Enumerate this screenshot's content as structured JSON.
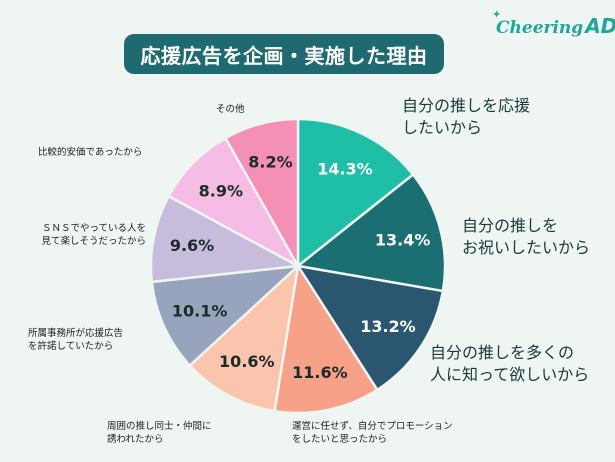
{
  "title": "応援広告を企画・実施した理由",
  "logo": {
    "main": "Cheering",
    "suffix": "AD"
  },
  "chart_data": {
    "type": "pie",
    "title": "応援広告を企画・実施した理由",
    "unit": "%",
    "slices": [
      {
        "label": "自分の推しを応援したいから",
        "value": 14.3,
        "display": "14.3%",
        "color": "#1fbfa7"
      },
      {
        "label": "自分の推しをお祝いしたいから",
        "value": 13.4,
        "display": "13.4%",
        "color": "#1b6f72"
      },
      {
        "label": "自分の推しを多くの人に知って欲しいから",
        "value": 13.2,
        "display": "13.2%",
        "color": "#2b5670"
      },
      {
        "label": "運営に任せず、自分でプロモーションをしたいと思ったから",
        "value": 11.6,
        "display": "11.6%",
        "color": "#f6a188"
      },
      {
        "label": "周囲の推し同士・仲間に誘われたから",
        "value": 10.6,
        "display": "10.6%",
        "color": "#fbc4ad"
      },
      {
        "label": "所属事務所が応援広告を許諾していたから",
        "value": 10.1,
        "display": "10.1%",
        "color": "#98a3bd"
      },
      {
        "label": "ＳＮＳでやっている人を見て楽しそうだったから",
        "value": 9.6,
        "display": "9.6%",
        "color": "#c8bcdc"
      },
      {
        "label": "比較的安価であったから",
        "value": 8.9,
        "display": "8.9%",
        "color": "#f5bde5"
      },
      {
        "label": "その他",
        "value": 8.2,
        "display": "8.2%",
        "color": "#f48fb5"
      }
    ]
  },
  "labels": {
    "s0": [
      "自分の推しを応援",
      "したいから"
    ],
    "s1": [
      "自分の推しを",
      "お祝いしたいから"
    ],
    "s2": [
      "自分の推しを多くの",
      "人に知って欲しいから"
    ],
    "s3": [
      "運営に任せず、自分でプロモーション",
      "をしたいと思ったから"
    ],
    "s4": [
      "周囲の推し同士・仲間に",
      "誘われたから"
    ],
    "s5": [
      "所属事務所が応援広告",
      "を許諾していたから"
    ],
    "s6": [
      "ＳＮＳでやっている人を",
      "見て楽しそうだったから"
    ],
    "s7": [
      "比較的安価であったから"
    ],
    "s8": [
      "その他"
    ]
  }
}
